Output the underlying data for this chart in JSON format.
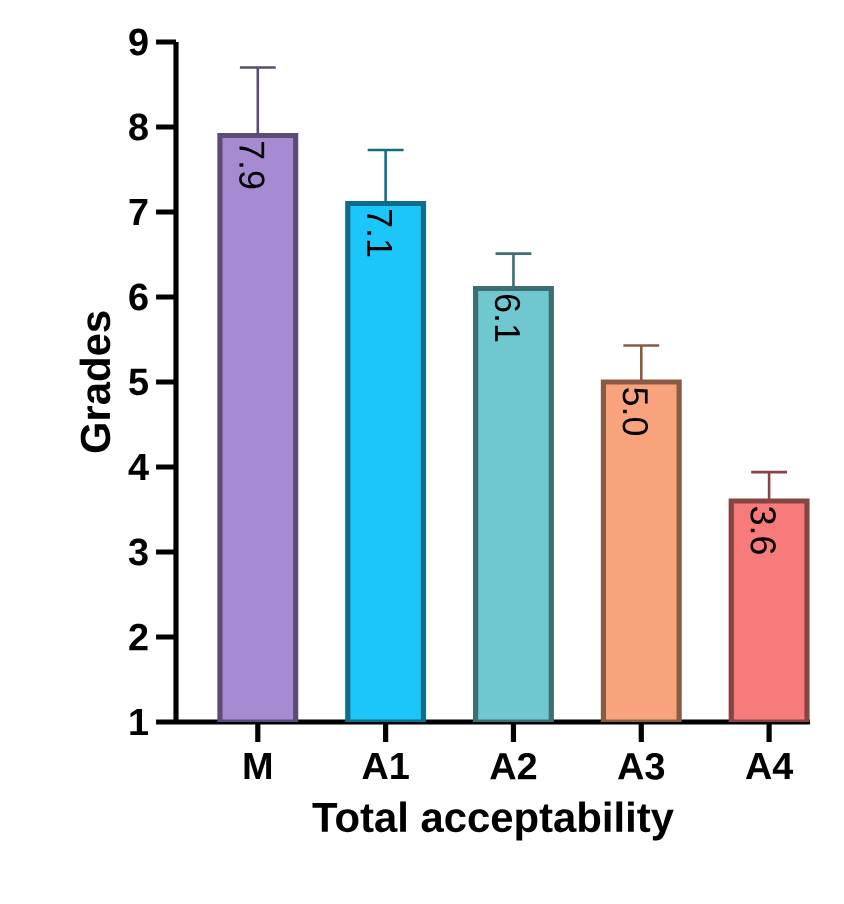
{
  "chart_data": {
    "type": "bar",
    "xlabel": "Total acceptability",
    "ylabel": "Grades",
    "categories": [
      "M",
      "A1",
      "A2",
      "A3",
      "A4"
    ],
    "values": [
      7.9,
      7.1,
      6.1,
      5.0,
      3.6
    ],
    "colors": [
      "#a68bd2",
      "#1cc6fb",
      "#6fc8d0",
      "#f9a37c",
      "#f87b7c"
    ],
    "errors": [
      [
        7.9,
        8.7
      ],
      [
        7.1,
        7.73
      ],
      [
        6.1,
        6.51
      ],
      [
        5.0,
        5.43
      ],
      [
        3.6,
        3.94
      ]
    ],
    "value_labels": [
      "7.9",
      "7.1",
      "6.1",
      "5.0",
      "3.6"
    ],
    "ylim": [
      1,
      9
    ],
    "yticks": [
      1,
      2,
      3,
      4,
      5,
      6,
      7,
      8,
      9
    ]
  }
}
